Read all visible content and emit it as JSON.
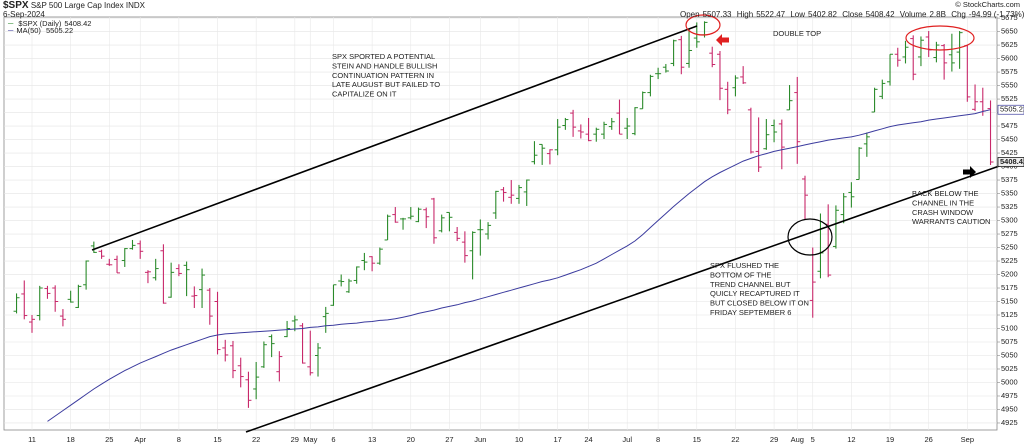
{
  "chart_data": {
    "type": "ohlc",
    "title": "$SPX",
    "subtitle": "S&P 500 Large Cap Index INDX",
    "date": "6-Sep-2024",
    "source": "© StockCharts.com",
    "header": {
      "open_label": "Open",
      "high_label": "High",
      "low_label": "Low",
      "close_label": "Close",
      "volume_label": "Volume",
      "volume": "2.8B",
      "chg_label": "Chg",
      "chg": "-94.99 (-1.73%)"
    },
    "categories": [
      null,
      null,
      "11",
      null,
      null,
      null,
      null,
      "18",
      null,
      null,
      null,
      null,
      "25",
      null,
      null,
      null,
      "Apr",
      null,
      null,
      null,
      null,
      "8",
      null,
      null,
      null,
      null,
      "15",
      null,
      null,
      null,
      null,
      "22",
      null,
      null,
      null,
      null,
      "29",
      null,
      "May",
      null,
      null,
      "6",
      null,
      null,
      null,
      null,
      "13",
      null,
      null,
      null,
      null,
      "20",
      null,
      null,
      null,
      null,
      "27",
      null,
      null,
      null,
      "Jun",
      null,
      null,
      null,
      null,
      "10",
      null,
      null,
      null,
      null,
      "17",
      null,
      null,
      null,
      "24",
      null,
      null,
      null,
      null,
      "Jul",
      null,
      null,
      null,
      "8",
      null,
      null,
      null,
      null,
      "15",
      null,
      null,
      null,
      null,
      "22",
      null,
      null,
      null,
      null,
      "29",
      null,
      null,
      "Aug",
      null,
      "5",
      null,
      null,
      null,
      null,
      "12",
      null,
      null,
      null,
      null,
      "19",
      null,
      null,
      null,
      null,
      "26",
      null,
      null,
      null,
      null,
      "Sep",
      null,
      null,
      null
    ],
    "series": [
      {
        "name": "$SPX (Daily)",
        "up_color": "#2a8a2a",
        "down_color": "#c8286a",
        "open": [
          5132,
          5164,
          5112,
          5124,
          5174,
          5175,
          5123,
          5154,
          5139,
          5181,
          5253,
          5243,
          5219,
          5228,
          5226,
          5248,
          5257,
          5204,
          5194,
          5244,
          5158,
          5211,
          5217,
          5160,
          5172,
          5171,
          5150,
          5064,
          5068,
          5031,
          5005,
          4988,
          5029,
          5085,
          5020,
          5085,
          5114,
          5105,
          5029,
          5050,
          5122,
          5143,
          5188,
          5168,
          5189,
          5226,
          5233,
          5221,
          5264,
          5311,
          5303,
          5305,
          5298,
          5320,
          5340,
          5281,
          5315,
          5278,
          5260,
          5244,
          5283,
          5275,
          5314,
          5357,
          5343,
          5341,
          5353,
          5409,
          5441,
          5424,
          5431,
          5476,
          5499,
          5466,
          5460,
          5460,
          5460,
          5474,
          5499,
          5471,
          5461,
          5507,
          5537,
          5572,
          5584,
          5591,
          5635,
          5591,
          5638,
          5644,
          5610,
          5608,
          5543,
          5546,
          5566,
          5505,
          5428,
          5433,
          5476,
          5479,
          5505,
          5537,
          5377,
          5152,
          5206,
          5293,
          5252,
          5311,
          5352,
          5376,
          5442,
          5501,
          5530,
          5557,
          5608,
          5603,
          5637,
          5603,
          5640,
          5602,
          5624,
          5607,
          5612,
          5624,
          5506,
          5520,
          5507.33
        ],
        "high": [
          5165,
          5189,
          5125,
          5179,
          5179,
          5180,
          5136,
          5170,
          5181,
          5226,
          5261,
          5246,
          5229,
          5235,
          5249,
          5264,
          5263,
          5208,
          5229,
          5256,
          5222,
          5219,
          5224,
          5178,
          5211,
          5175,
          5168,
          5079,
          5077,
          5046,
          5020,
          5038,
          5076,
          5089,
          5058,
          5114,
          5124,
          5110,
          5096,
          5073,
          5140,
          5181,
          5200,
          5192,
          5215,
          5240,
          5234,
          5250,
          5311,
          5325,
          5305,
          5325,
          5324,
          5324,
          5342,
          5311,
          5315,
          5288,
          5280,
          5280,
          5302,
          5297,
          5355,
          5362,
          5375,
          5366,
          5376,
          5447,
          5441,
          5432,
          5488,
          5490,
          5505,
          5478,
          5490,
          5472,
          5483,
          5490,
          5524,
          5490,
          5510,
          5539,
          5570,
          5583,
          5590,
          5635,
          5642,
          5655,
          5667,
          5669,
          5622,
          5614,
          5557,
          5569,
          5586,
          5509,
          5491,
          5488,
          5487,
          5487,
          5551,
          5566,
          5383,
          5250,
          5313,
          5330,
          5328,
          5351,
          5371,
          5436,
          5463,
          5546,
          5561,
          5608,
          5620,
          5633,
          5643,
          5641,
          5651,
          5631,
          5627,
          5646,
          5651,
          5626,
          5552,
          5546,
          5522.47
        ],
        "low": [
          5128,
          5117,
          5092,
          5115,
          5155,
          5131,
          5104,
          5148,
          5138,
          5172,
          5240,
          5229,
          5216,
          5203,
          5214,
          5246,
          5229,
          5184,
          5189,
          5146,
          5157,
          5197,
          5160,
          5138,
          5138,
          5107,
          5052,
          5039,
          5008,
          4991,
          4953,
          4969,
          5027,
          5047,
          5002,
          5084,
          5095,
          5035,
          5013,
          5011,
          5092,
          5142,
          5178,
          5166,
          5183,
          5208,
          5206,
          5218,
          5264,
          5296,
          5283,
          5302,
          5297,
          5286,
          5257,
          5278,
          5280,
          5262,
          5222,
          5191,
          5235,
          5265,
          5303,
          5335,
          5331,
          5331,
          5327,
          5404,
          5403,
          5404,
          5421,
          5468,
          5455,
          5452,
          5447,
          5446,
          5451,
          5468,
          5460,
          5451,
          5458,
          5507,
          5530,
          5562,
          5574,
          5586,
          5571,
          5583,
          5620,
          5639,
          5584,
          5523,
          5497,
          5530,
          5553,
          5424,
          5390,
          5431,
          5445,
          5395,
          5505,
          5405,
          5302,
          5120,
          5193,
          5195,
          5248,
          5295,
          5324,
          5376,
          5418,
          5501,
          5525,
          5550,
          5585,
          5591,
          5560,
          5586,
          5603,
          5593,
          5561,
          5576,
          5581,
          5520,
          5503,
          5494,
          5402.82
        ],
        "close": [
          5157,
          5124,
          5117,
          5175,
          5165,
          5150,
          5117,
          5149,
          5178,
          5225,
          5241,
          5234,
          5218,
          5203,
          5248,
          5254,
          5243,
          5205,
          5211,
          5147,
          5204,
          5202,
          5209,
          5161,
          5199,
          5123,
          5061,
          5051,
          5022,
          5011,
          4967,
          5010,
          5070,
          5072,
          5048,
          5100,
          5116,
          5036,
          5018,
          5064,
          5128,
          5181,
          5187,
          5188,
          5214,
          5223,
          5221,
          5247,
          5308,
          5297,
          5303,
          5308,
          5321,
          5307,
          5268,
          5305,
          5306,
          5267,
          5235,
          5278,
          5283,
          5291,
          5354,
          5352,
          5347,
          5361,
          5375,
          5421,
          5434,
          5431,
          5473,
          5487,
          5473,
          5464,
          5448,
          5469,
          5478,
          5483,
          5460,
          5475,
          5509,
          5537,
          5567,
          5572,
          5577,
          5633,
          5584,
          5615,
          5631,
          5667,
          5589,
          5545,
          5505,
          5564,
          5555,
          5427,
          5399,
          5459,
          5464,
          5436,
          5522,
          5446,
          5347,
          5186,
          5240,
          5199,
          5319,
          5344,
          5344,
          5434,
          5455,
          5543,
          5554,
          5608,
          5597,
          5621,
          5571,
          5634,
          5616,
          5625,
          5592,
          5592,
          5648,
          5529,
          5520,
          5503,
          5408.42
        ]
      },
      {
        "name": "MA(50)",
        "color": "#3b3b9e",
        "values": [
          null,
          null,
          null,
          null,
          4928,
          4938,
          4948,
          4958,
          4968,
          4978,
          4988,
          4997,
          5006,
          5014,
          5022,
          5029,
          5036,
          5042,
          5048,
          5054,
          5060,
          5065,
          5070,
          5075,
          5080,
          5085,
          5088,
          5090,
          5091,
          5092,
          5093,
          5094,
          5095,
          5096,
          5097,
          5098,
          5099,
          5100,
          5102,
          5103,
          5105,
          5106,
          5108,
          5109,
          5110,
          5112,
          5113,
          5115,
          5116,
          5118,
          5121,
          5124,
          5128,
          5131,
          5134,
          5138,
          5141,
          5144,
          5148,
          5151,
          5155,
          5159,
          5163,
          5167,
          5171,
          5175,
          5179,
          5183,
          5187,
          5190,
          5194,
          5199,
          5204,
          5209,
          5215,
          5221,
          5229,
          5237,
          5245,
          5253,
          5262,
          5274,
          5287,
          5300,
          5313,
          5326,
          5338,
          5350,
          5361,
          5372,
          5381,
          5389,
          5396,
          5403,
          5410,
          5415,
          5420,
          5424,
          5428,
          5431,
          5434,
          5437,
          5440,
          5443,
          5446,
          5449,
          5451,
          5453,
          5455,
          5458,
          5462,
          5466,
          5470,
          5474,
          5477,
          5479,
          5481,
          5483,
          5486,
          5488,
          5490,
          5492,
          5494,
          5496,
          5498,
          5502,
          5505.22
        ]
      }
    ],
    "ylim": [
      4912,
      5677
    ],
    "yticks": [
      4925,
      4950,
      4975,
      5000,
      5025,
      5050,
      5075,
      5100,
      5125,
      5150,
      5175,
      5200,
      5225,
      5250,
      5275,
      5300,
      5325,
      5350,
      5375,
      5400,
      5425,
      5450,
      5475,
      5500,
      5525,
      5550,
      5575,
      5600,
      5625,
      5650,
      5675
    ],
    "grid": true,
    "annotations": [
      {
        "lines": [
          "SPX SPORTED A POTENTIAL",
          "STEIN AND HANDLE BULLISH",
          "CONTINUATION PATTERN IN",
          "LATE AUGUST BUT FAILED TO",
          "CAPITALIZE ON IT"
        ],
        "color": "#111111"
      },
      {
        "lines": [
          "DOUBLE TOP"
        ],
        "color": "#e02020"
      },
      {
        "lines": [
          "SPX FLUSHED THE",
          "BOTTOM OF THE",
          "TREND CHANNEL BUT",
          "QUICLY RECAPTURED IT",
          "BUT CLOSED BELOW IT ON",
          "FRIDAY SEPTEMBER 6"
        ],
        "color": "#111111"
      },
      {
        "lines": [
          "BACK BELOW THE",
          "CHANNEL IN THE",
          "CRASH WINDOW",
          "WARRANTS CAUTION"
        ],
        "color": "#111111"
      }
    ]
  }
}
